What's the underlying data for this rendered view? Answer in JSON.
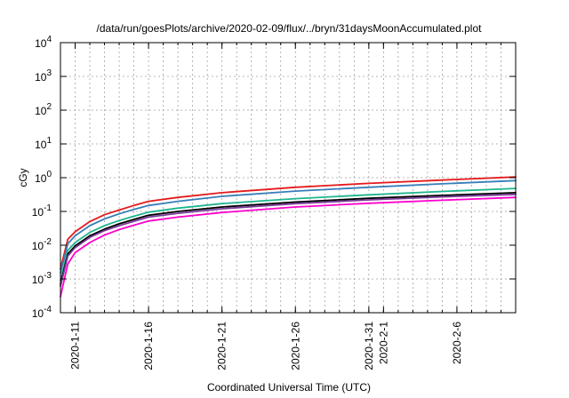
{
  "chart_data": {
    "type": "line",
    "title": "/data/run/goesPlots/archive/2020-02-09/flux/../bryn/31daysMoonAccumulated.plot",
    "xlabel": "Coordinated Universal Time (UTC)",
    "ylabel": "cGy",
    "yscale": "log",
    "ylim": [
      0.0001,
      10000
    ],
    "xlim": [
      "2020-01-10",
      "2020-02-10"
    ],
    "grid": true,
    "x_ticks": [
      "2020-1-11",
      "2020-1-16",
      "2020-1-21",
      "2020-1-26",
      "2020-1-31",
      "2020-2-1",
      "2020-2-6"
    ],
    "y_ticks": [
      {
        "base": "10",
        "exp": "-4"
      },
      {
        "base": "10",
        "exp": "-3"
      },
      {
        "base": "10",
        "exp": "-2"
      },
      {
        "base": "10",
        "exp": "-1"
      },
      {
        "base": "10",
        "exp": "0"
      },
      {
        "base": "10",
        "exp": "1"
      },
      {
        "base": "10",
        "exp": "2"
      },
      {
        "base": "10",
        "exp": "3"
      },
      {
        "base": "10",
        "exp": "4"
      }
    ],
    "x": [
      "2020-01-10",
      "2020-01-10.5",
      "2020-01-11",
      "2020-01-12",
      "2020-01-13",
      "2020-01-14",
      "2020-01-15",
      "2020-01-16",
      "2020-01-18",
      "2020-01-21",
      "2020-01-26",
      "2020-01-31",
      "2020-02-05",
      "2020-02-10"
    ],
    "series": [
      {
        "color": "#e41a1c",
        "values": [
          0.002,
          0.015,
          0.025,
          0.05,
          0.08,
          0.11,
          0.15,
          0.2,
          0.26,
          0.36,
          0.52,
          0.68,
          0.85,
          1.05
        ]
      },
      {
        "color": "#377eb8",
        "values": [
          0.0015,
          0.011,
          0.019,
          0.038,
          0.06,
          0.085,
          0.115,
          0.15,
          0.2,
          0.28,
          0.4,
          0.52,
          0.66,
          0.82
        ]
      },
      {
        "color": "#1fb58f",
        "values": [
          0.0009,
          0.007,
          0.012,
          0.024,
          0.038,
          0.054,
          0.072,
          0.095,
          0.125,
          0.17,
          0.24,
          0.31,
          0.39,
          0.48
        ]
      },
      {
        "color": "#000000",
        "values": [
          0.0007,
          0.0055,
          0.0095,
          0.019,
          0.03,
          0.043,
          0.058,
          0.077,
          0.1,
          0.135,
          0.19,
          0.245,
          0.3,
          0.36
        ]
      },
      {
        "color": "#7a3b9a",
        "values": [
          0.0006,
          0.0048,
          0.0085,
          0.017,
          0.027,
          0.038,
          0.051,
          0.068,
          0.088,
          0.12,
          0.17,
          0.22,
          0.27,
          0.32
        ]
      },
      {
        "color": "#ff00cc",
        "values": [
          0.0003,
          0.0028,
          0.006,
          0.012,
          0.02,
          0.029,
          0.039,
          0.052,
          0.068,
          0.093,
          0.135,
          0.175,
          0.215,
          0.26
        ]
      }
    ]
  }
}
